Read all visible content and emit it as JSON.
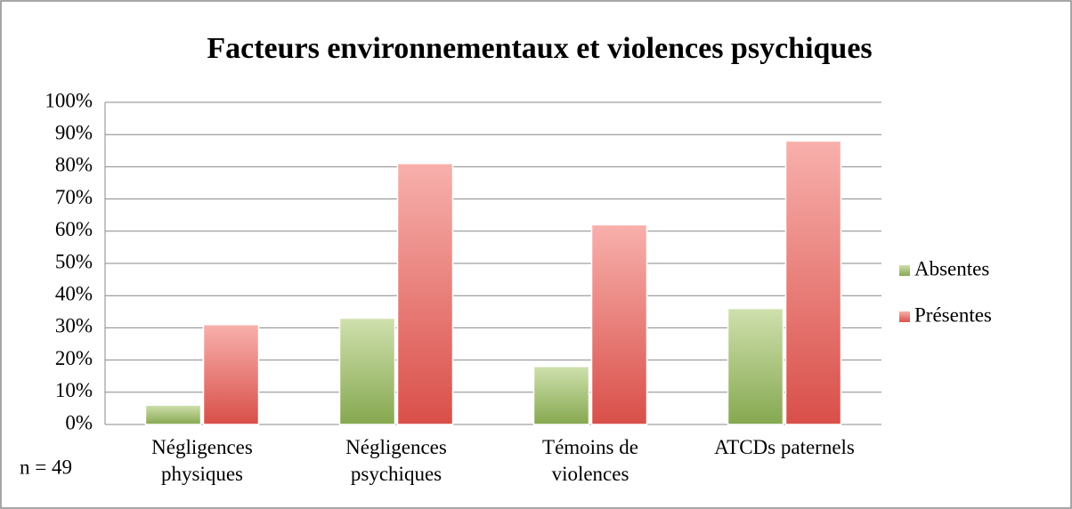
{
  "chart_data": {
    "type": "bar",
    "title": "Facteurs environnementaux et violences psychiques",
    "annotation": "n = 49",
    "categories": [
      "Négligences physiques",
      "Négligences psychiques",
      "Témoins de violences",
      "ATCDs paternels"
    ],
    "series": [
      {
        "name": "Absentes",
        "color": "#9bbb59",
        "values": [
          6,
          33,
          18,
          36
        ]
      },
      {
        "name": "Présentes",
        "color": "#e8605a",
        "values": [
          31,
          81,
          62,
          88
        ]
      }
    ],
    "ylim": [
      0,
      100
    ],
    "yticks": [
      {
        "value": 0,
        "label": "0%"
      },
      {
        "value": 10,
        "label": "10%"
      },
      {
        "value": 20,
        "label": "20%"
      },
      {
        "value": 30,
        "label": "30%"
      },
      {
        "value": 40,
        "label": "40%"
      },
      {
        "value": 50,
        "label": "50%"
      },
      {
        "value": 60,
        "label": "60%"
      },
      {
        "value": 70,
        "label": "70%"
      },
      {
        "value": 80,
        "label": "80%"
      },
      {
        "value": 90,
        "label": "90%"
      },
      {
        "value": 100,
        "label": "100%"
      }
    ],
    "grid": true,
    "legend": "right"
  }
}
